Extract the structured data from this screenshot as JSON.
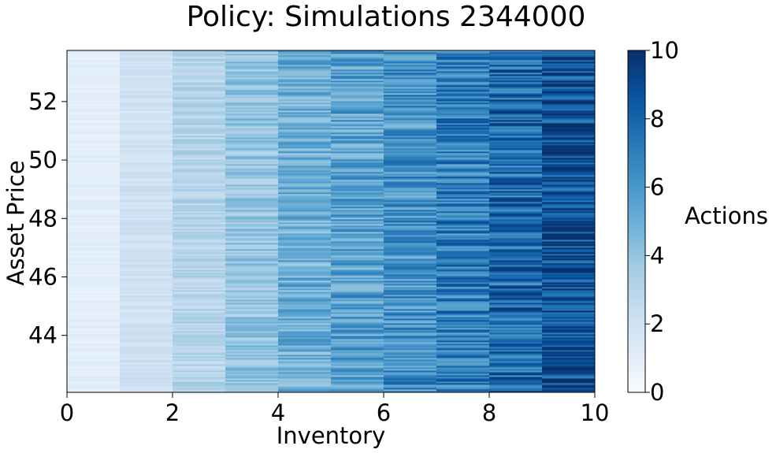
{
  "chart_data": {
    "type": "heatmap",
    "title": "Policy: Simulations 2344000",
    "xlabel": "Inventory",
    "ylabel": "Asset Price",
    "xlim": [
      0,
      10
    ],
    "ylim": [
      42.05,
      53.75
    ],
    "xticks": [
      0,
      2,
      4,
      6,
      8,
      10
    ],
    "yticks": [
      44,
      46,
      48,
      50,
      52
    ],
    "colorbar": {
      "label": "Actions",
      "range": [
        0,
        10
      ],
      "ticks": [
        0,
        2,
        4,
        6,
        8,
        10
      ],
      "colormap": "Blues",
      "stops": [
        "#f7fbff",
        "#deebf7",
        "#c6dbef",
        "#9ecae1",
        "#6baed6",
        "#4292c6",
        "#2171b5",
        "#08519c",
        "#08306b"
      ]
    },
    "columns": [
      {
        "inventory_range": [
          0,
          1
        ],
        "typical_action": 1.0,
        "spread": 0.35
      },
      {
        "inventory_range": [
          1,
          2
        ],
        "typical_action": 2.0,
        "spread": 0.5
      },
      {
        "inventory_range": [
          2,
          3
        ],
        "typical_action": 3.0,
        "spread": 0.8
      },
      {
        "inventory_range": [
          3,
          4
        ],
        "typical_action": 4.0,
        "spread": 1.1
      },
      {
        "inventory_range": [
          4,
          5
        ],
        "typical_action": 5.0,
        "spread": 1.4
      },
      {
        "inventory_range": [
          5,
          6
        ],
        "typical_action": 5.6,
        "spread": 1.6
      },
      {
        "inventory_range": [
          6,
          7
        ],
        "typical_action": 6.2,
        "spread": 1.8
      },
      {
        "inventory_range": [
          7,
          8
        ],
        "typical_action": 7.0,
        "spread": 1.9
      },
      {
        "inventory_range": [
          8,
          9
        ],
        "typical_action": 7.8,
        "spread": 2.0
      },
      {
        "inventory_range": [
          9,
          10
        ],
        "typical_action": 8.8,
        "spread": 1.9
      }
    ]
  }
}
